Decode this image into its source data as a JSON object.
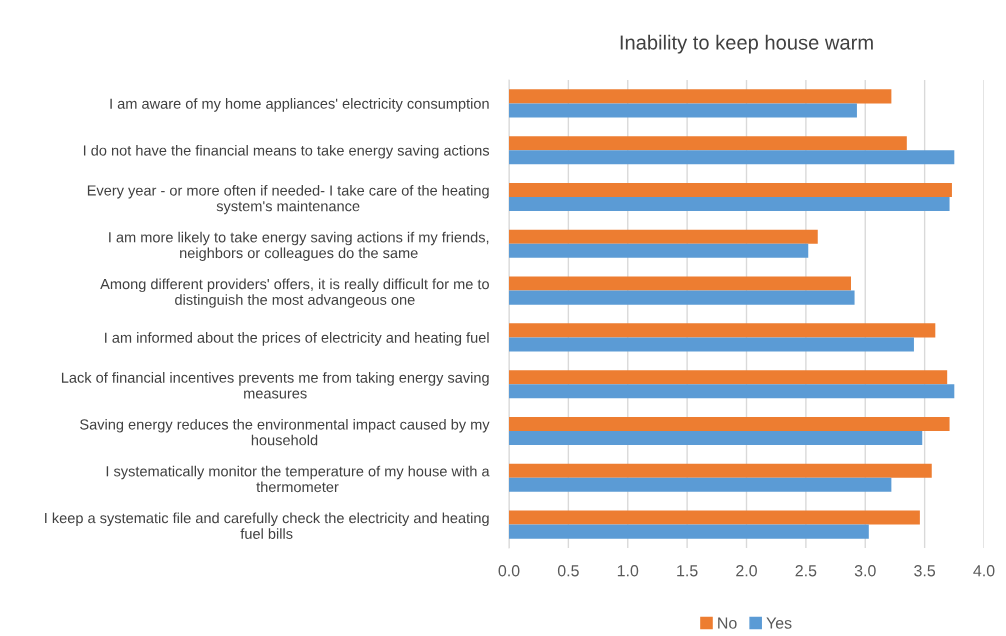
{
  "chart_data": {
    "type": "bar",
    "orientation": "horizontal",
    "title": "Inability to keep house warm",
    "categories": [
      "I am aware of my home appliances' electricity consumption",
      "I do not have the financial means to take energy saving actions",
      "Every year - or more often if needed- I take care of the heating\nsystem's maintenance",
      "I am more likely to take energy saving actions if my friends,\nneighbors or colleagues do the same",
      "Among different providers' offers, it is really difficult for me to\ndistinguish the most advangeous one",
      "I am informed about the prices of electricity and heating fuel",
      "Lack of financial incentives prevents me from taking energy saving\nmeasures",
      "Saving energy reduces the environmental impact caused by my\nhousehold",
      "I systematically monitor the temperature of my house with a\nthermometer",
      "I keep a systematic file and carefully check the electricity and heating\nfuel bills"
    ],
    "series": [
      {
        "name": "No",
        "color": "#ed7d31",
        "values": [
          3.22,
          3.35,
          3.73,
          2.6,
          2.88,
          3.59,
          3.69,
          3.71,
          3.56,
          3.46
        ]
      },
      {
        "name": "Yes",
        "color": "#5b9bd5",
        "values": [
          2.93,
          3.75,
          3.71,
          2.52,
          2.91,
          3.41,
          3.75,
          3.48,
          3.22,
          3.03
        ]
      }
    ],
    "xlim": [
      0,
      4
    ],
    "xticks": [
      {
        "value": 0,
        "label": "0.0"
      },
      {
        "value": 0.5,
        "label": "0.5"
      },
      {
        "value": 1,
        "label": "1.0"
      },
      {
        "value": 1.5,
        "label": "1.5"
      },
      {
        "value": 2,
        "label": "2.0"
      },
      {
        "value": 2.5,
        "label": "2.5"
      },
      {
        "value": 3,
        "label": "3.0"
      },
      {
        "value": 3.5,
        "label": "3.5"
      },
      {
        "value": 4,
        "label": "4.0"
      }
    ],
    "grid": "x",
    "legend": "bottom"
  }
}
